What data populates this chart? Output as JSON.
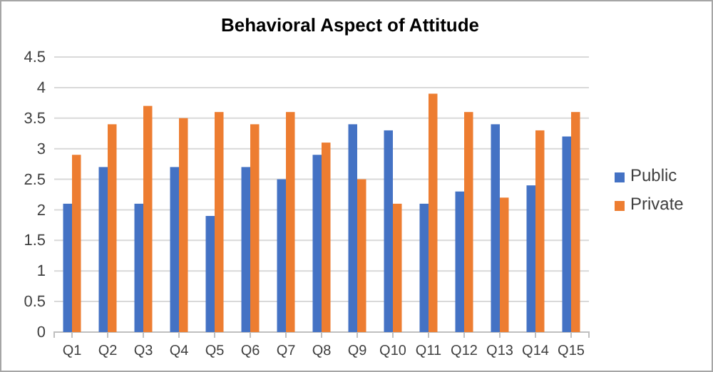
{
  "chart_data": {
    "type": "bar",
    "title": "Behavioral Aspect of Attitude",
    "categories": [
      "Q1",
      "Q2",
      "Q3",
      "Q4",
      "Q5",
      "Q6",
      "Q7",
      "Q8",
      "Q9",
      "Q10",
      "Q11",
      "Q12",
      "Q13",
      "Q14",
      "Q15"
    ],
    "series": [
      {
        "name": "Public",
        "color": "#4472c4",
        "values": [
          2.1,
          2.7,
          2.1,
          2.7,
          1.9,
          2.7,
          2.5,
          2.9,
          3.4,
          3.3,
          2.1,
          2.3,
          3.4,
          2.4,
          3.2
        ]
      },
      {
        "name": "Private",
        "color": "#ed7d31",
        "values": [
          2.9,
          3.4,
          3.7,
          3.5,
          3.6,
          3.4,
          3.6,
          3.1,
          2.5,
          2.1,
          3.9,
          3.6,
          2.2,
          3.3,
          3.6
        ]
      }
    ],
    "ylim": [
      0,
      4.5
    ],
    "yticks": [
      0,
      0.5,
      1,
      1.5,
      2,
      2.5,
      3,
      3.5,
      4,
      4.5
    ],
    "grid": "y",
    "legend": "right"
  }
}
